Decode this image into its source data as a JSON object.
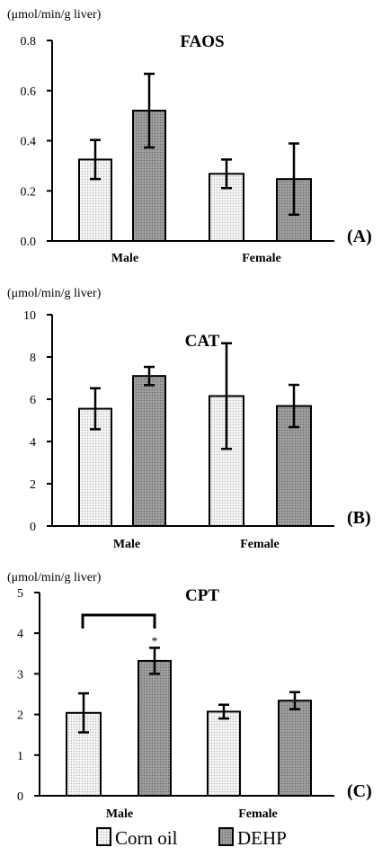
{
  "legend": [
    {
      "label": "Corn oil",
      "color": "#ebebeb"
    },
    {
      "label": "DEHP",
      "color": "#8f8f8f"
    }
  ],
  "chart_data": [
    {
      "type": "bar",
      "title": "FAOS",
      "panel_label": "(A)",
      "ylabel": "(μmol/min/g liver)",
      "categories": [
        "Male",
        "Female"
      ],
      "ylim": [
        0,
        0.8
      ],
      "yticks": [
        "0.0",
        "0.2",
        "0.4",
        "0.6",
        "0.8"
      ],
      "series": [
        {
          "name": "Corn oil",
          "values": [
            0.325,
            0.268
          ],
          "errors": [
            0.078,
            0.057
          ]
        },
        {
          "name": "DEHP",
          "values": [
            0.52,
            0.247
          ],
          "errors": [
            0.147,
            0.142
          ]
        }
      ]
    },
    {
      "type": "bar",
      "title": "CAT",
      "panel_label": "(B)",
      "ylabel": "(μmol/min/g liver)",
      "categories": [
        "Male",
        "Female"
      ],
      "ylim": [
        0,
        10
      ],
      "yticks": [
        "0",
        "2",
        "4",
        "6",
        "8",
        "10"
      ],
      "series": [
        {
          "name": "Corn oil",
          "values": [
            5.55,
            6.15
          ],
          "errors": [
            0.97,
            2.5
          ]
        },
        {
          "name": "DEHP",
          "values": [
            7.1,
            5.68
          ],
          "errors": [
            0.43,
            1.0
          ]
        }
      ]
    },
    {
      "type": "bar",
      "title": "CPT",
      "panel_label": "(C)",
      "ylabel": "(μmol/min/g liver)",
      "categories": [
        "Male",
        "Female"
      ],
      "ylim": [
        0,
        5
      ],
      "yticks": [
        "0",
        "1",
        "2",
        "3",
        "4",
        "5"
      ],
      "series": [
        {
          "name": "Corn oil",
          "values": [
            2.04,
            2.07
          ],
          "errors": [
            0.48,
            0.17
          ]
        },
        {
          "name": "DEHP",
          "values": [
            3.32,
            2.34
          ],
          "errors": [
            0.32,
            0.21
          ]
        }
      ],
      "annotations": [
        {
          "text": "*",
          "type": "significance",
          "between": [
            "Male Corn oil",
            "Male DEHP"
          ]
        }
      ]
    }
  ]
}
